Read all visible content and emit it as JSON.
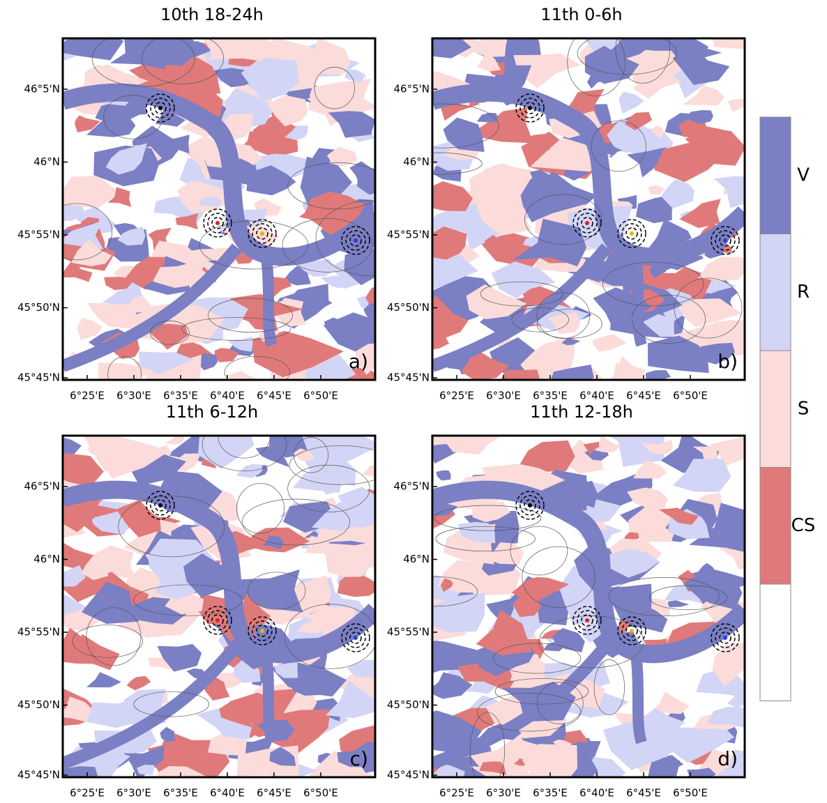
{
  "panels": [
    {
      "title": "10th 18-24h",
      "label": "a)"
    },
    {
      "title": "11th 0-6h",
      "label": "b)"
    },
    {
      "title": "11th 6-12h",
      "label": "c)"
    },
    {
      "title": "11th 12-18h",
      "label": "d)"
    }
  ],
  "x_ticks": [
    "6°25'E",
    "6°30'E",
    "6°35'E",
    "6°40'E",
    "6°45'E",
    "6°50'E"
  ],
  "y_ticks": [
    "46°5'N",
    "46°N",
    "45°55'N",
    "45°50'N",
    "45°45'N"
  ],
  "legend": {
    "items": [
      {
        "label": "V",
        "color": "#7b7fc4"
      },
      {
        "label": "R",
        "color": "#d3d5f6"
      },
      {
        "label": "S",
        "color": "#fbdcda"
      },
      {
        "label": "CS",
        "color": "#e07a7a"
      },
      {
        "color": "#ffffff"
      }
    ]
  }
}
